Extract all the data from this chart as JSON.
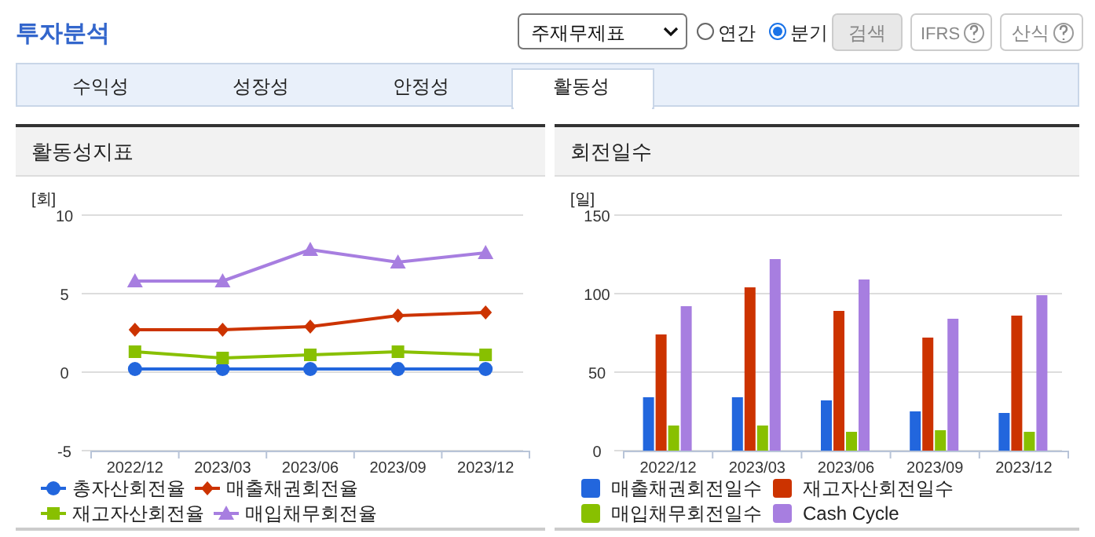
{
  "chart_data": [
    {
      "type": "other",
      "title": "투자분석",
      "annotations": [
        "주재무제표",
        "연간",
        "분기",
        "검색",
        "IFRS",
        "산식",
        "수익성",
        "성장성",
        "안정성",
        "활동성"
      ]
    },
    {
      "type": "line",
      "title": "활동성지표",
      "ylabel": "[회]",
      "categories": [
        "2022/12",
        "2023/03",
        "2023/06",
        "2023/09",
        "2023/12"
      ],
      "ylim": [
        -5,
        10
      ],
      "yticks": [
        -5,
        0,
        5,
        10
      ],
      "grid": "y",
      "legend": "bottom",
      "series": [
        {
          "name": "총자산회전율",
          "color": "#2266dd",
          "marker": "circle",
          "values": [
            0.2,
            0.2,
            0.2,
            0.2,
            0.2
          ]
        },
        {
          "name": "매출채권회전율",
          "color": "#cc3300",
          "marker": "diamond",
          "values": [
            2.7,
            2.7,
            2.9,
            3.6,
            3.8
          ]
        },
        {
          "name": "재고자산회전율",
          "color": "#88c000",
          "marker": "square",
          "values": [
            1.3,
            0.9,
            1.1,
            1.3,
            1.1
          ]
        },
        {
          "name": "매입채무회전율",
          "color": "#a77ee0",
          "marker": "triangle",
          "values": [
            5.8,
            5.8,
            7.8,
            7.0,
            7.6
          ]
        }
      ]
    },
    {
      "type": "bar",
      "title": "회전일수",
      "ylabel": "[일]",
      "categories": [
        "2022/12",
        "2023/03",
        "2023/06",
        "2023/09",
        "2023/12"
      ],
      "ylim": [
        0,
        150
      ],
      "yticks": [
        0,
        50,
        100,
        150
      ],
      "grid": "y",
      "legend": "bottom",
      "series": [
        {
          "name": "매출채권회전일수",
          "color": "#2266dd",
          "values": [
            34,
            34,
            32,
            25,
            24
          ]
        },
        {
          "name": "재고자산회전일수",
          "color": "#cc3300",
          "values": [
            74,
            104,
            89,
            72,
            86
          ]
        },
        {
          "name": "매입채무회전일수",
          "color": "#88c000",
          "values": [
            16,
            16,
            12,
            13,
            12
          ]
        },
        {
          "name": "Cash Cycle",
          "color": "#a77ee0",
          "values": [
            92,
            122,
            109,
            84,
            99
          ]
        }
      ]
    }
  ]
}
